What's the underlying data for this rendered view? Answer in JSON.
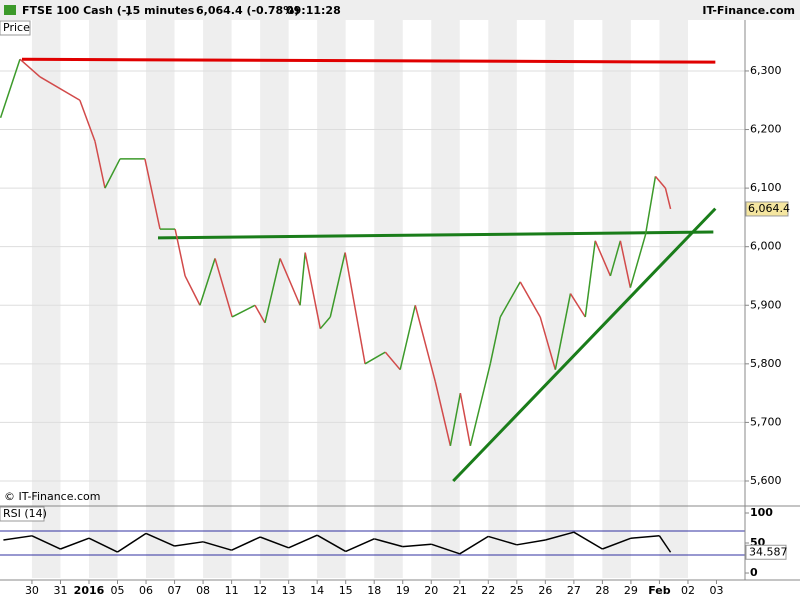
{
  "header": {
    "instrument": "FTSE 100 Cash (-)",
    "interval": "15 minutes",
    "quote": "6,064.4 (-0.78%)",
    "time": "09:11:28",
    "site": "IT-Finance.com"
  },
  "chart_data": [
    {
      "type": "line",
      "panel_label": "Price",
      "watermark": "© IT-Finance.com",
      "color_up": "#3c9a2a",
      "color_down": "#d24a4a",
      "x": [
        -1.1,
        -0.42,
        0.28,
        1.68,
        2.21,
        2.56,
        3.09,
        3.96,
        4.49,
        5.02,
        5.37,
        5.89,
        6.42,
        7.02,
        7.82,
        8.17,
        8.7,
        9.4,
        9.58,
        10.11,
        10.46,
        10.98,
        11.68,
        12.39,
        12.91,
        13.44,
        14.14,
        14.67,
        15.02,
        15.37,
        16.07,
        16.42,
        17.12,
        17.82,
        18.35,
        18.88,
        19.4,
        19.75,
        20.28,
        20.63,
        20.98,
        21.51,
        21.86,
        22.21,
        22.39
      ],
      "values": [
        6220,
        6320,
        6290,
        6250,
        6180,
        6100,
        6150,
        6150,
        6030,
        6030,
        5950,
        5900,
        5980,
        5880,
        5900,
        5870,
        5980,
        5900,
        5990,
        5860,
        5880,
        5990,
        5800,
        5820,
        5790,
        5900,
        5770,
        5660,
        5750,
        5660,
        5800,
        5880,
        5940,
        5880,
        5790,
        5920,
        5880,
        6010,
        5950,
        6010,
        5930,
        6020,
        6120,
        6100,
        6064.4
      ],
      "last_price": {
        "value": 6064.4,
        "label": "6,064.4"
      },
      "trendlines": [
        {
          "color": "#e00000",
          "x": [
            -0.35,
            23.96
          ],
          "y": [
            6320,
            6315
          ]
        },
        {
          "color": "#1a7d1a",
          "x": [
            4.42,
            23.89
          ],
          "y": [
            6015,
            6025
          ]
        },
        {
          "color": "#1a7d1a",
          "x": [
            14.77,
            23.96
          ],
          "y": [
            5600,
            6065
          ]
        }
      ],
      "xlim": [
        -1.12,
        25
      ],
      "xticks": [
        {
          "value": 0,
          "label": "30"
        },
        {
          "value": 1,
          "label": "31"
        },
        {
          "value": 2,
          "label": "2016"
        },
        {
          "value": 3,
          "label": "05"
        },
        {
          "value": 4,
          "label": "06"
        },
        {
          "value": 5,
          "label": "07"
        },
        {
          "value": 6,
          "label": "08"
        },
        {
          "value": 7,
          "label": "11"
        },
        {
          "value": 8,
          "label": "12"
        },
        {
          "value": 9,
          "label": "13"
        },
        {
          "value": 10,
          "label": "14"
        },
        {
          "value": 11,
          "label": "15"
        },
        {
          "value": 12,
          "label": "18"
        },
        {
          "value": 13,
          "label": "19"
        },
        {
          "value": 14,
          "label": "20"
        },
        {
          "value": 15,
          "label": "21"
        },
        {
          "value": 16,
          "label": "22"
        },
        {
          "value": 17,
          "label": "25"
        },
        {
          "value": 18,
          "label": "26"
        },
        {
          "value": 19,
          "label": "27"
        },
        {
          "value": 20,
          "label": "28"
        },
        {
          "value": 21,
          "label": "29"
        },
        {
          "value": 22,
          "label": "Feb"
        },
        {
          "value": 23,
          "label": "02"
        },
        {
          "value": 24,
          "label": "03"
        }
      ],
      "ylim": [
        5559,
        6387
      ],
      "yticks": [
        {
          "value": 5600,
          "label": "5,600"
        },
        {
          "value": 5700,
          "label": "5,700"
        },
        {
          "value": 5800,
          "label": "5,800"
        },
        {
          "value": 5900,
          "label": "5,900"
        },
        {
          "value": 6000,
          "label": "6,000"
        },
        {
          "value": 6100,
          "label": "6,100"
        },
        {
          "value": 6200,
          "label": "6,200"
        },
        {
          "value": 6300,
          "label": "6,300"
        }
      ],
      "grid": true
    },
    {
      "type": "line",
      "panel_label": "RSI (14)",
      "color": "#000000",
      "level_color": "#3030a0",
      "x": [
        -1,
        0,
        1,
        2,
        3,
        4,
        5,
        6,
        7,
        8,
        9,
        10,
        11,
        12,
        13,
        14,
        15,
        16,
        17,
        18,
        19,
        20,
        21,
        22,
        22.39
      ],
      "values": [
        55,
        62,
        40,
        58,
        35,
        66,
        45,
        52,
        38,
        60,
        42,
        63,
        36,
        57,
        44,
        48,
        32,
        61,
        47,
        55,
        68,
        40,
        58,
        62,
        34.587
      ],
      "levels": [
        70,
        30
      ],
      "ylim": [
        -8.3,
        110
      ],
      "yticks": [
        0,
        50,
        100
      ]
    }
  ]
}
